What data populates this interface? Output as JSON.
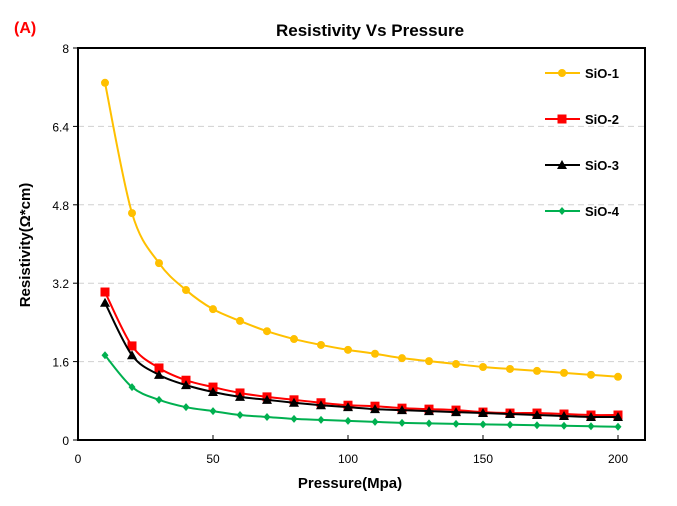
{
  "panel_label": "(A)",
  "chart_data": {
    "type": "line",
    "title": "Resistivity Vs Pressure",
    "xlabel": "Pressure(Mpa)",
    "ylabel": "Resistivity(Ω*cm)",
    "xlim": [
      0,
      210
    ],
    "ylim": [
      0,
      8
    ],
    "xticks": [
      0,
      50,
      100,
      150,
      200
    ],
    "yticks": [
      0,
      1.6,
      3.2,
      4.8,
      6.4,
      8
    ],
    "ytick_labels": [
      "0",
      "1.6",
      "3.2",
      "4.8",
      "6.4",
      "8"
    ],
    "grid": "horizontal dashed",
    "legend_placement": "top-right",
    "x": [
      10,
      20,
      30,
      40,
      50,
      60,
      70,
      80,
      90,
      100,
      110,
      120,
      130,
      140,
      150,
      160,
      170,
      180,
      190,
      200
    ],
    "series": [
      {
        "name": "SiO-1",
        "color": "#FFC000",
        "marker": "circle",
        "values": [
          7.29,
          4.63,
          3.61,
          3.06,
          2.67,
          2.43,
          2.22,
          2.06,
          1.94,
          1.84,
          1.76,
          1.67,
          1.61,
          1.55,
          1.49,
          1.45,
          1.41,
          1.37,
          1.33,
          1.29
        ]
      },
      {
        "name": "SiO-2",
        "color": "#FF0000",
        "marker": "square",
        "values": [
          3.02,
          1.92,
          1.47,
          1.22,
          1.08,
          0.96,
          0.88,
          0.82,
          0.76,
          0.71,
          0.69,
          0.65,
          0.63,
          0.61,
          0.57,
          0.55,
          0.55,
          0.53,
          0.51,
          0.51
        ]
      },
      {
        "name": "SiO-3",
        "color": "#000000",
        "marker": "triangle",
        "values": [
          2.8,
          1.73,
          1.33,
          1.12,
          0.98,
          0.88,
          0.82,
          0.76,
          0.71,
          0.67,
          0.63,
          0.61,
          0.59,
          0.57,
          0.55,
          0.53,
          0.51,
          0.49,
          0.47,
          0.47
        ]
      },
      {
        "name": "SiO-4",
        "color": "#00B050",
        "marker": "diamond",
        "values": [
          1.73,
          1.08,
          0.82,
          0.67,
          0.59,
          0.51,
          0.47,
          0.43,
          0.41,
          0.39,
          0.37,
          0.35,
          0.34,
          0.33,
          0.32,
          0.31,
          0.3,
          0.29,
          0.28,
          0.27
        ]
      }
    ]
  }
}
